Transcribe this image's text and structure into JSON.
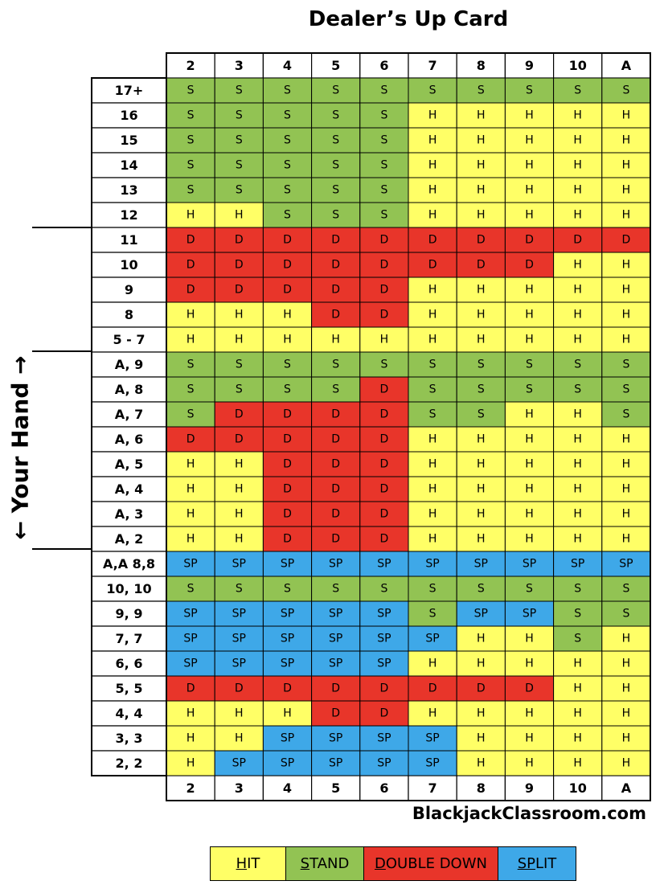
{
  "title": "Dealer’s Up Card",
  "side_label": "← Your Hand →",
  "website": "BlackjackClassroom.com",
  "colors": {
    "H": "#ffff66",
    "S": "#92c353",
    "D": "#e8352a",
    "SP": "#3ea8e8"
  },
  "legend": [
    {
      "key": "H",
      "underline": "H",
      "rest": "IT",
      "color": "#ffff66",
      "width": 94
    },
    {
      "key": "S",
      "underline": "S",
      "rest": "TAND",
      "color": "#92c353",
      "width": 97
    },
    {
      "key": "D",
      "underline": "D",
      "rest": "OUBLE DOWN",
      "color": "#e8352a",
      "width": 167
    },
    {
      "key": "SP",
      "underline": "SP",
      "rest": "LIT",
      "color": "#3ea8e8",
      "width": 96
    }
  ],
  "chart_data": {
    "type": "table",
    "columns": [
      "2",
      "3",
      "4",
      "5",
      "6",
      "7",
      "8",
      "9",
      "10",
      "A"
    ],
    "rows": [
      {
        "label": "17+",
        "cells": [
          "S",
          "S",
          "S",
          "S",
          "S",
          "S",
          "S",
          "S",
          "S",
          "S"
        ]
      },
      {
        "label": "16",
        "cells": [
          "S",
          "S",
          "S",
          "S",
          "S",
          "H",
          "H",
          "H",
          "H",
          "H"
        ]
      },
      {
        "label": "15",
        "cells": [
          "S",
          "S",
          "S",
          "S",
          "S",
          "H",
          "H",
          "H",
          "H",
          "H"
        ]
      },
      {
        "label": "14",
        "cells": [
          "S",
          "S",
          "S",
          "S",
          "S",
          "H",
          "H",
          "H",
          "H",
          "H"
        ]
      },
      {
        "label": "13",
        "cells": [
          "S",
          "S",
          "S",
          "S",
          "S",
          "H",
          "H",
          "H",
          "H",
          "H"
        ]
      },
      {
        "label": "12",
        "cells": [
          "H",
          "H",
          "S",
          "S",
          "S",
          "H",
          "H",
          "H",
          "H",
          "H"
        ]
      },
      {
        "label": "11",
        "cells": [
          "D",
          "D",
          "D",
          "D",
          "D",
          "D",
          "D",
          "D",
          "D",
          "D"
        ]
      },
      {
        "label": "10",
        "cells": [
          "D",
          "D",
          "D",
          "D",
          "D",
          "D",
          "D",
          "D",
          "H",
          "H"
        ]
      },
      {
        "label": "9",
        "cells": [
          "D",
          "D",
          "D",
          "D",
          "D",
          "H",
          "H",
          "H",
          "H",
          "H"
        ]
      },
      {
        "label": "8",
        "cells": [
          "H",
          "H",
          "H",
          "D",
          "D",
          "H",
          "H",
          "H",
          "H",
          "H"
        ]
      },
      {
        "label": "5 - 7",
        "cells": [
          "H",
          "H",
          "H",
          "H",
          "H",
          "H",
          "H",
          "H",
          "H",
          "H"
        ]
      },
      {
        "label": "A, 9",
        "cells": [
          "S",
          "S",
          "S",
          "S",
          "S",
          "S",
          "S",
          "S",
          "S",
          "S"
        ]
      },
      {
        "label": "A, 8",
        "cells": [
          "S",
          "S",
          "S",
          "S",
          "D",
          "S",
          "S",
          "S",
          "S",
          "S"
        ]
      },
      {
        "label": "A, 7",
        "cells": [
          "S",
          "D",
          "D",
          "D",
          "D",
          "S",
          "S",
          "H",
          "H",
          "S"
        ]
      },
      {
        "label": "A, 6",
        "cells": [
          "D",
          "D",
          "D",
          "D",
          "D",
          "H",
          "H",
          "H",
          "H",
          "H"
        ]
      },
      {
        "label": "A, 5",
        "cells": [
          "H",
          "H",
          "D",
          "D",
          "D",
          "H",
          "H",
          "H",
          "H",
          "H"
        ]
      },
      {
        "label": "A, 4",
        "cells": [
          "H",
          "H",
          "D",
          "D",
          "D",
          "H",
          "H",
          "H",
          "H",
          "H"
        ]
      },
      {
        "label": "A, 3",
        "cells": [
          "H",
          "H",
          "D",
          "D",
          "D",
          "H",
          "H",
          "H",
          "H",
          "H"
        ]
      },
      {
        "label": "A, 2",
        "cells": [
          "H",
          "H",
          "D",
          "D",
          "D",
          "H",
          "H",
          "H",
          "H",
          "H"
        ]
      },
      {
        "label": "A,A 8,8",
        "cells": [
          "SP",
          "SP",
          "SP",
          "SP",
          "SP",
          "SP",
          "SP",
          "SP",
          "SP",
          "SP"
        ]
      },
      {
        "label": "10, 10",
        "cells": [
          "S",
          "S",
          "S",
          "S",
          "S",
          "S",
          "S",
          "S",
          "S",
          "S"
        ]
      },
      {
        "label": "9, 9",
        "cells": [
          "SP",
          "SP",
          "SP",
          "SP",
          "SP",
          "S",
          "SP",
          "SP",
          "S",
          "S"
        ]
      },
      {
        "label": "7, 7",
        "cells": [
          "SP",
          "SP",
          "SP",
          "SP",
          "SP",
          "SP",
          "H",
          "H",
          "S",
          "H"
        ]
      },
      {
        "label": "6, 6",
        "cells": [
          "SP",
          "SP",
          "SP",
          "SP",
          "SP",
          "H",
          "H",
          "H",
          "H",
          "H"
        ]
      },
      {
        "label": "5, 5",
        "cells": [
          "D",
          "D",
          "D",
          "D",
          "D",
          "D",
          "D",
          "D",
          "H",
          "H"
        ]
      },
      {
        "label": "4, 4",
        "cells": [
          "H",
          "H",
          "H",
          "D",
          "D",
          "H",
          "H",
          "H",
          "H",
          "H"
        ]
      },
      {
        "label": "3, 3",
        "cells": [
          "H",
          "H",
          "SP",
          "SP",
          "SP",
          "SP",
          "H",
          "H",
          "H",
          "H"
        ]
      },
      {
        "label": "2, 2",
        "cells": [
          "H",
          "SP",
          "SP",
          "SP",
          "SP",
          "SP",
          "H",
          "H",
          "H",
          "H"
        ]
      }
    ]
  }
}
